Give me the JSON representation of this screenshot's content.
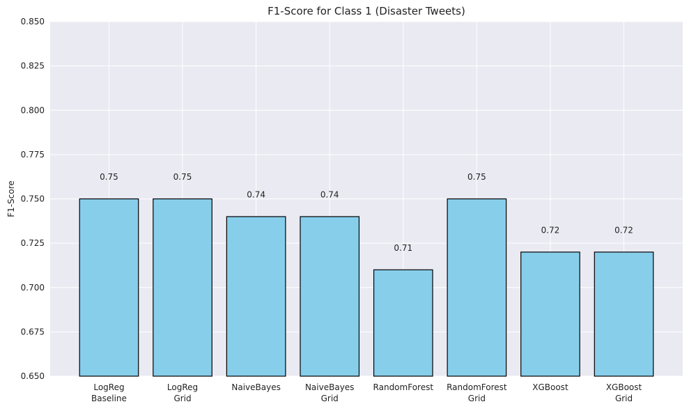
{
  "chart_data": {
    "type": "bar",
    "title": "F1-Score for Class 1 (Disaster Tweets)",
    "xlabel": "",
    "ylabel": "F1-Score",
    "categories": [
      [
        "LogReg",
        "Baseline"
      ],
      [
        "LogReg",
        "Grid"
      ],
      [
        "NaiveBayes"
      ],
      [
        "NaiveBayes",
        "Grid"
      ],
      [
        "RandomForest"
      ],
      [
        "RandomForest",
        "Grid"
      ],
      [
        "XGBoost"
      ],
      [
        "XGBoost",
        "Grid"
      ]
    ],
    "values": [
      0.75,
      0.75,
      0.74,
      0.74,
      0.71,
      0.75,
      0.72,
      0.72
    ],
    "data_labels": [
      "0.75",
      "0.75",
      "0.74",
      "0.74",
      "0.71",
      "0.75",
      "0.72",
      "0.72"
    ],
    "ylim": [
      0.65,
      0.85
    ],
    "yticks": [
      0.65,
      0.675,
      0.7,
      0.725,
      0.75,
      0.775,
      0.8,
      0.825,
      0.85
    ],
    "ytick_labels": [
      "0.650",
      "0.675",
      "0.700",
      "0.725",
      "0.750",
      "0.775",
      "0.800",
      "0.825",
      "0.850"
    ],
    "grid": true,
    "colors": {
      "bar_fill": "#87ceeb",
      "bar_edge": "#000000",
      "plot_background": "#eaeaf2",
      "grid": "#ffffff",
      "text": "#222222"
    }
  }
}
